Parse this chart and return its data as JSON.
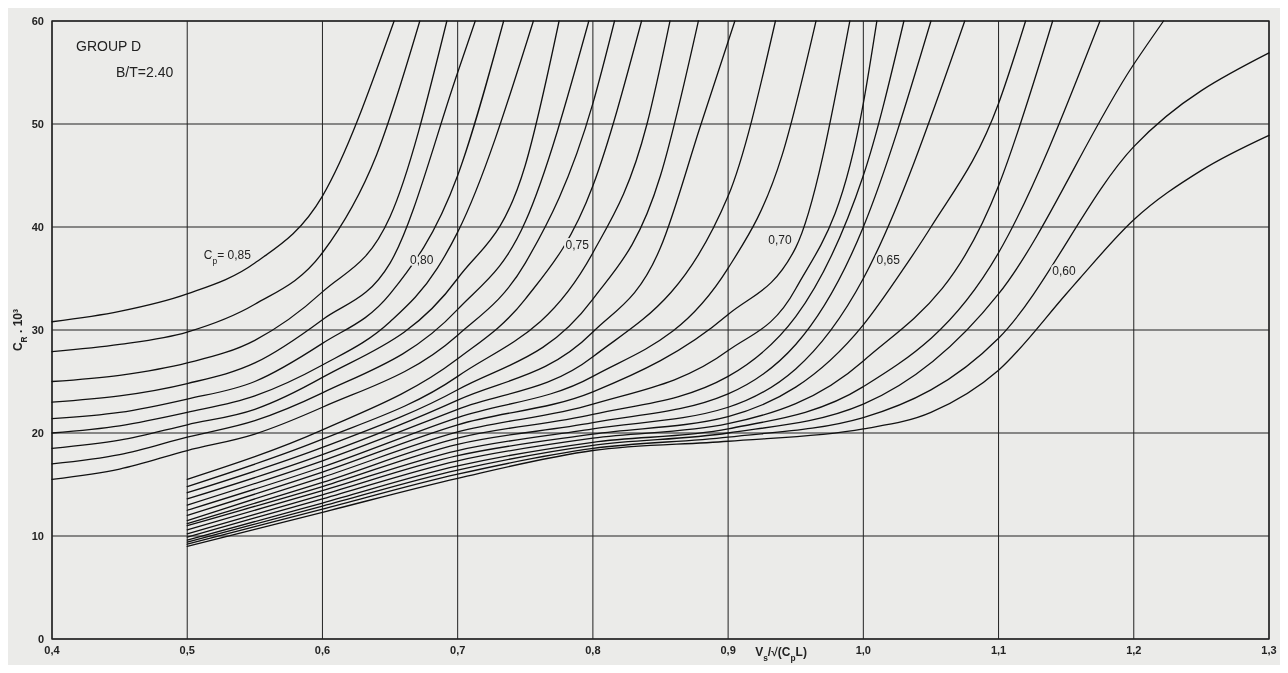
{
  "chart_data": {
    "type": "line",
    "xlabel": "V$_{s}$/√(C$_{p}$L)",
    "ylabel": "C$_{R}$ . 10³",
    "xlim": [
      0.4,
      1.3
    ],
    "ylim": [
      0,
      60
    ],
    "xticks": [
      {
        "value": 0.4,
        "label": "0,4"
      },
      {
        "value": 0.5,
        "label": "0,5"
      },
      {
        "value": 0.6,
        "label": "0,6"
      },
      {
        "value": 0.7,
        "label": "0,7"
      },
      {
        "value": 0.8,
        "label": "0,8"
      },
      {
        "value": 0.9,
        "label": "0,9"
      },
      {
        "value": 1.0,
        "label": "1,0"
      },
      {
        "value": 1.1,
        "label": "1,1"
      },
      {
        "value": 1.2,
        "label": "1,2"
      },
      {
        "value": 1.3,
        "label": "1,3"
      }
    ],
    "yticks": [
      0,
      10,
      20,
      30,
      40,
      50,
      60
    ],
    "grid": true,
    "annotations": [
      "GROUP D",
      "B/T=2.40",
      {
        "text": "C$_{p}$= 0,85",
        "x": 0.55,
        "y": 36.5
      },
      {
        "text": "0,80",
        "x": 0.685,
        "y": 36
      },
      {
        "text": "0,75",
        "x": 0.8,
        "y": 37.5
      },
      {
        "text": "0,70",
        "x": 0.95,
        "y": 38
      },
      {
        "text": "0,65",
        "x": 1.03,
        "y": 36
      },
      {
        "text": "0,60",
        "x": 1.16,
        "y": 35
      }
    ],
    "series": [
      {
        "color": "#111111",
        "x": [
          0.4,
          0.45,
          0.5,
          0.55,
          0.6,
          0.653
        ],
        "values": [
          30.8,
          31.8,
          33.5,
          36.5,
          43,
          60
        ]
      },
      {
        "color": "#111111",
        "x": [
          0.4,
          0.45,
          0.5,
          0.55,
          0.6,
          0.64,
          0.672
        ],
        "values": [
          27.9,
          28.6,
          29.8,
          32.5,
          37.5,
          47,
          60
        ]
      },
      {
        "color": "#111111",
        "x": [
          0.4,
          0.45,
          0.5,
          0.55,
          0.6,
          0.65,
          0.692
        ],
        "values": [
          25,
          25.6,
          26.8,
          29,
          33.7,
          41,
          60
        ]
      },
      {
        "color": "#111111",
        "x": [
          0.4,
          0.45,
          0.5,
          0.55,
          0.6,
          0.65,
          0.7,
          0.713
        ],
        "values": [
          23,
          23.6,
          24.8,
          26.8,
          31,
          36.5,
          55,
          60
        ]
      },
      {
        "color": "#111111",
        "x": [
          0.4,
          0.45,
          0.5,
          0.55,
          0.6,
          0.65,
          0.7,
          0.734
        ],
        "values": [
          21.4,
          22,
          23.3,
          25,
          28.7,
          33.5,
          45,
          60
        ]
      },
      {
        "color": "#111111",
        "x": [
          0.4,
          0.45,
          0.5,
          0.55,
          0.6,
          0.65,
          0.685,
          0.7,
          0.756
        ],
        "values": [
          20,
          20.7,
          22,
          23.6,
          26.6,
          30.8,
          36,
          39.5,
          60
        ]
      },
      {
        "color": "#111111",
        "x": [
          0.4,
          0.45,
          0.5,
          0.55,
          0.6,
          0.7,
          0.75,
          0.775
        ],
        "values": [
          18.5,
          19.3,
          20.8,
          22.3,
          25.4,
          35,
          46,
          60
        ]
      },
      {
        "color": "#111111",
        "x": [
          0.4,
          0.45,
          0.5,
          0.55,
          0.6,
          0.7,
          0.75,
          0.797
        ],
        "values": [
          17,
          17.9,
          19.6,
          21.2,
          23.9,
          32,
          40.5,
          60
        ]
      },
      {
        "color": "#111111",
        "x": [
          0.4,
          0.45,
          0.5,
          0.55,
          0.6,
          0.7,
          0.75,
          0.8,
          0.816
        ],
        "values": [
          15.5,
          16.5,
          18.3,
          19.9,
          22.5,
          29.5,
          36.5,
          52,
          60
        ]
      },
      {
        "color": "#111111",
        "x": [
          0.5,
          0.6,
          0.7,
          0.75,
          0.8,
          0.836
        ],
        "values": [
          15.5,
          20.3,
          27.2,
          33,
          44,
          60
        ]
      },
      {
        "color": "#111111",
        "x": [
          0.5,
          0.6,
          0.7,
          0.8,
          0.84,
          0.857
        ],
        "values": [
          14.8,
          19.4,
          25.5,
          37.5,
          50,
          60
        ]
      },
      {
        "color": "#111111",
        "x": [
          0.5,
          0.6,
          0.7,
          0.8,
          0.85,
          0.878
        ],
        "values": [
          14.2,
          18.6,
          24.2,
          33,
          45,
          60
        ]
      },
      {
        "color": "#111111",
        "x": [
          0.5,
          0.6,
          0.7,
          0.8,
          0.85,
          0.88,
          0.905
        ],
        "values": [
          13.6,
          17.9,
          23.2,
          29.8,
          38,
          50,
          60
        ]
      },
      {
        "color": "#111111",
        "x": [
          0.5,
          0.6,
          0.7,
          0.8,
          0.9,
          0.935
        ],
        "values": [
          13,
          17.3,
          22.3,
          27.4,
          43,
          60
        ]
      },
      {
        "color": "#111111",
        "x": [
          0.5,
          0.6,
          0.7,
          0.8,
          0.9,
          0.94,
          0.965
        ],
        "values": [
          12.5,
          16.7,
          21.5,
          25.5,
          36,
          47,
          60
        ]
      },
      {
        "color": "#111111",
        "x": [
          0.5,
          0.6,
          0.7,
          0.8,
          0.9,
          0.95,
          0.99
        ],
        "values": [
          12,
          16.2,
          20.8,
          24,
          31.5,
          38,
          60
        ]
      },
      {
        "color": "#111111",
        "x": [
          0.5,
          0.6,
          0.7,
          0.8,
          0.9,
          0.95,
          1.0,
          1.01
        ],
        "values": [
          11.5,
          15.7,
          20.1,
          22.8,
          28,
          34,
          52,
          60
        ]
      },
      {
        "color": "#111111",
        "x": [
          0.5,
          0.6,
          0.7,
          0.8,
          0.9,
          1.0,
          1.03
        ],
        "values": [
          11.2,
          15.2,
          19.5,
          21.8,
          25.5,
          45,
          60
        ]
      },
      {
        "color": "#111111",
        "x": [
          0.5,
          0.6,
          0.7,
          0.8,
          0.9,
          1.0,
          1.05
        ],
        "values": [
          11,
          14.8,
          18.9,
          21,
          23.8,
          40,
          60
        ]
      },
      {
        "color": "#111111",
        "x": [
          0.5,
          0.6,
          0.7,
          0.8,
          0.9,
          1.0,
          1.075
        ],
        "values": [
          10.6,
          14.4,
          18.3,
          20.4,
          22.5,
          35,
          60
        ]
      },
      {
        "color": "#111111",
        "x": [
          0.5,
          0.6,
          0.7,
          0.8,
          0.9,
          1.0,
          1.03,
          1.05,
          1.1,
          1.12
        ],
        "values": [
          10.2,
          14,
          17.8,
          19.9,
          21.6,
          30.5,
          36,
          40,
          52,
          60
        ]
      },
      {
        "color": "#111111",
        "x": [
          0.5,
          0.6,
          0.7,
          0.8,
          0.9,
          1.0,
          1.1,
          1.14
        ],
        "values": [
          9.9,
          13.6,
          17.3,
          19.5,
          20.9,
          27,
          44,
          60
        ]
      },
      {
        "color": "#111111",
        "x": [
          0.5,
          0.6,
          0.7,
          0.8,
          0.9,
          1.0,
          1.1,
          1.175
        ],
        "values": [
          9.6,
          13.2,
          16.8,
          19.1,
          20.4,
          24.5,
          37.5,
          60
        ]
      },
      {
        "color": "#111111",
        "x": [
          0.5,
          0.6,
          0.7,
          0.8,
          0.9,
          1.0,
          1.1,
          1.2,
          1.222
        ],
        "values": [
          9.4,
          12.9,
          16.4,
          18.8,
          20,
          22.8,
          33.5,
          55.8,
          60
        ]
      },
      {
        "color": "#111111",
        "x": [
          0.5,
          0.6,
          0.7,
          0.8,
          0.9,
          1.0,
          1.1,
          1.2,
          1.3
        ],
        "values": [
          9.2,
          12.6,
          16,
          18.5,
          19.6,
          21.5,
          29.2,
          47.8,
          56.9
        ]
      },
      {
        "color": "#111111",
        "x": [
          0.5,
          0.6,
          0.7,
          0.8,
          0.9,
          1.0,
          1.05,
          1.1,
          1.15,
          1.16,
          1.2,
          1.25,
          1.3
        ],
        "values": [
          9,
          12.3,
          15.6,
          18.3,
          19.2,
          20.4,
          22,
          26.1,
          33.5,
          35,
          40.7,
          45.5,
          48.9
        ]
      }
    ]
  }
}
